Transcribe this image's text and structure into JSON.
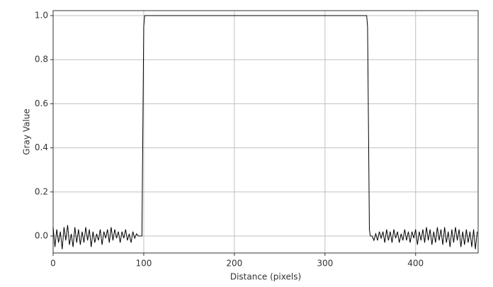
{
  "chart_data": {
    "type": "line",
    "xlabel": "Distance (pixels)",
    "ylabel": "Gray Value",
    "xlim": [
      0,
      469
    ],
    "ylim": [
      -0.077,
      1.0225
    ],
    "xticks": [
      0,
      100,
      200,
      300,
      400
    ],
    "yticks": [
      {
        "value": 0,
        "label": "0.0"
      },
      0.2,
      0.4,
      0.6,
      0.8,
      {
        "value": 1,
        "label": "1.0"
      }
    ],
    "grid": true,
    "series": [
      {
        "color": "#000000",
        "x": [
          0,
          2,
          4,
          6,
          8,
          10,
          12,
          14,
          16,
          18,
          20,
          22,
          24,
          26,
          28,
          30,
          32,
          34,
          36,
          38,
          40,
          42,
          44,
          46,
          48,
          50,
          52,
          54,
          56,
          58,
          60,
          62,
          64,
          66,
          68,
          70,
          72,
          74,
          76,
          78,
          80,
          82,
          84,
          86,
          88,
          90,
          92,
          94,
          96,
          98,
          100,
          101,
          200,
          300,
          346,
          347,
          348,
          349,
          350,
          352,
          354,
          356,
          358,
          360,
          362,
          364,
          366,
          368,
          370,
          372,
          374,
          376,
          378,
          380,
          382,
          384,
          386,
          388,
          390,
          392,
          394,
          396,
          398,
          400,
          402,
          404,
          406,
          408,
          410,
          412,
          414,
          416,
          418,
          420,
          422,
          424,
          426,
          428,
          430,
          432,
          434,
          436,
          438,
          440,
          442,
          444,
          446,
          448,
          450,
          452,
          454,
          456,
          458,
          460,
          462,
          464,
          466,
          468
        ],
        "values": [
          0.04,
          -0.05,
          0.03,
          -0.03,
          0.02,
          -0.06,
          0.04,
          -0.02,
          0.05,
          -0.04,
          0.01,
          -0.05,
          0.04,
          -0.03,
          0.03,
          -0.04,
          0.02,
          -0.03,
          0.04,
          -0.02,
          0.03,
          -0.05,
          0.02,
          -0.03,
          0.01,
          -0.02,
          0.03,
          -0.04,
          0.02,
          -0.01,
          0.03,
          -0.03,
          0.04,
          -0.02,
          0.03,
          -0.01,
          0.02,
          -0.03,
          0.02,
          -0.01,
          0.03,
          -0.02,
          0.01,
          -0.03,
          0.02,
          -0.01,
          0.01,
          0.0,
          0.0,
          0.0,
          0.95,
          1.0,
          1.0,
          1.0,
          1.0,
          0.95,
          0.5,
          0.03,
          0.0,
          0.0,
          -0.02,
          0.01,
          -0.02,
          0.02,
          -0.01,
          0.02,
          -0.03,
          0.03,
          -0.02,
          0.02,
          -0.03,
          0.03,
          -0.01,
          0.02,
          -0.03,
          0.01,
          -0.02,
          0.03,
          -0.02,
          0.02,
          -0.03,
          0.02,
          -0.01,
          0.03,
          -0.04,
          0.02,
          -0.02,
          0.03,
          -0.03,
          0.04,
          -0.02,
          0.03,
          -0.04,
          0.02,
          -0.03,
          0.04,
          -0.02,
          0.03,
          -0.04,
          0.04,
          -0.03,
          0.02,
          -0.05,
          0.03,
          -0.03,
          0.04,
          -0.02,
          0.03,
          -0.05,
          0.02,
          -0.04,
          0.03,
          -0.03,
          0.02,
          -0.05,
          0.03,
          -0.06,
          0.02
        ]
      }
    ]
  }
}
